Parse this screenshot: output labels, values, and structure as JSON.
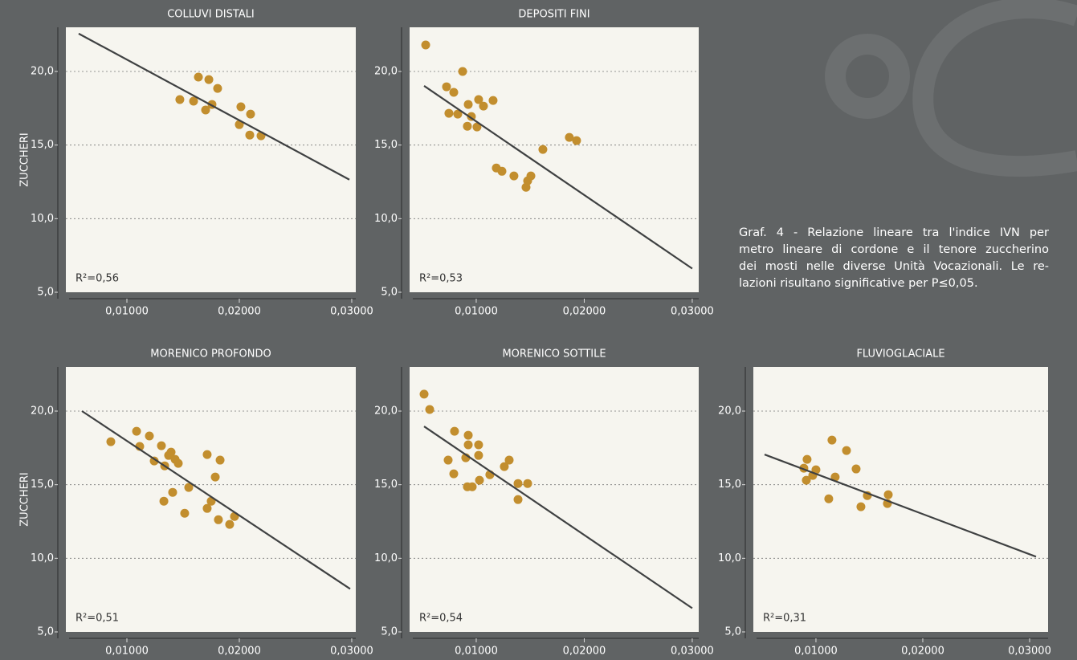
{
  "chart_data": [
    {
      "type": "scatter",
      "title": "COLLUVI DISTALI",
      "y_label": "ZUCCHERI",
      "annotation": "R²=0,56",
      "color": "#c28e2e",
      "x": [
        0.01471,
        0.01636,
        0.01729,
        0.01807,
        0.01757,
        0.01593,
        0.017,
        0.02014,
        0.021,
        0.02,
        0.02093,
        0.02193
      ],
      "values": [
        18.09,
        19.62,
        19.45,
        18.85,
        17.76,
        17.98,
        17.38,
        17.6,
        17.1,
        16.39,
        15.68,
        15.63
      ],
      "trendline": {
        "x": [
          0.00571,
          0.02979
        ],
        "values": [
          22.57,
          12.65
        ]
      },
      "xlim": [
        0.00457,
        0.03036
      ],
      "ylim": [
        5,
        23
      ],
      "xticks": [
        {
          "value": 0.01,
          "label": "0,01000"
        },
        {
          "value": 0.02,
          "label": "0,02000"
        },
        {
          "value": 0.03,
          "label": "0,03000"
        }
      ],
      "yticks": [
        {
          "value": 5,
          "label": "5,0"
        },
        {
          "value": 10,
          "label": "10,0"
        },
        {
          "value": 15,
          "label": "15,0"
        },
        {
          "value": 20,
          "label": "20,0"
        }
      ],
      "grid": true
    },
    {
      "type": "scatter",
      "title": "DEPOSITI FINI",
      "annotation": "R²=0,53",
      "color": "#c28e2e",
      "x": [
        0.00532,
        0.00725,
        0.00874,
        0.00792,
        0.00747,
        0.00829,
        0.00926,
        0.00955,
        0.00918,
        0.01022,
        0.01067,
        0.01156,
        0.01007,
        0.01186,
        0.01238,
        0.01349,
        0.01476,
        0.01506,
        0.01461,
        0.01617,
        0.01862,
        0.01929
      ],
      "values": [
        21.8,
        18.96,
        20.0,
        18.58,
        17.16,
        17.1,
        17.76,
        16.94,
        16.28,
        18.09,
        17.65,
        18.03,
        16.23,
        13.44,
        13.22,
        12.9,
        12.57,
        12.9,
        12.13,
        14.7,
        15.52,
        15.3
      ],
      "trendline": {
        "x": [
          0.00517,
          0.03
        ],
        "values": [
          19.02,
          6.61
        ]
      },
      "xlim": [
        0.00383,
        0.0306
      ],
      "ylim": [
        5,
        23
      ],
      "xticks": [
        {
          "value": 0.01,
          "label": "0,01000"
        },
        {
          "value": 0.02,
          "label": "0,02000"
        },
        {
          "value": 0.03,
          "label": "0,03000"
        }
      ],
      "yticks": [
        {
          "value": 5,
          "label": "5,0"
        },
        {
          "value": 10,
          "label": "10,0"
        },
        {
          "value": 15,
          "label": "15,0"
        },
        {
          "value": 20,
          "label": "20,0"
        }
      ],
      "grid": true
    },
    {
      "type": "scatter",
      "title": "MORENICO PROFONDO",
      "y_label": "ZUCCHERI",
      "annotation": "R²=0,51",
      "color": "#c28e2e",
      "x": [
        0.00857,
        0.01086,
        0.01114,
        0.012,
        0.01243,
        0.01307,
        0.01336,
        0.01371,
        0.01393,
        0.01429,
        0.01457,
        0.01407,
        0.01329,
        0.0155,
        0.01514,
        0.01714,
        0.01829,
        0.01786,
        0.01714,
        0.0175,
        0.01814,
        0.01914,
        0.01957
      ],
      "values": [
        17.92,
        18.63,
        17.6,
        18.31,
        16.61,
        17.65,
        16.28,
        16.99,
        17.21,
        16.72,
        16.45,
        14.48,
        13.88,
        14.81,
        13.06,
        17.05,
        16.67,
        15.52,
        13.39,
        13.88,
        12.62,
        12.3,
        12.84
      ],
      "trendline": {
        "x": [
          0.006,
          0.02986
        ],
        "values": [
          20.0,
          7.92
        ]
      },
      "xlim": [
        0.00457,
        0.03036
      ],
      "ylim": [
        5,
        23
      ],
      "xticks": [
        {
          "value": 0.01,
          "label": "0,01000"
        },
        {
          "value": 0.02,
          "label": "0,02000"
        },
        {
          "value": 0.03,
          "label": "0,03000"
        }
      ],
      "yticks": [
        {
          "value": 5,
          "label": "5,0"
        },
        {
          "value": 10,
          "label": "10,0"
        },
        {
          "value": 15,
          "label": "15,0"
        },
        {
          "value": 20,
          "label": "20,0"
        }
      ],
      "grid": true
    },
    {
      "type": "scatter",
      "title": "MORENICO SOTTILE",
      "annotation": "R²=0,54",
      "color": "#c28e2e",
      "x": [
        0.00517,
        0.00569,
        0.0074,
        0.00799,
        0.00792,
        0.00903,
        0.00926,
        0.00926,
        0.00918,
        0.00963,
        0.01022,
        0.01022,
        0.0103,
        0.01126,
        0.0126,
        0.01305,
        0.01387,
        0.01387,
        0.01476
      ],
      "values": [
        21.15,
        20.11,
        16.67,
        18.63,
        15.74,
        16.83,
        18.36,
        17.71,
        14.86,
        14.86,
        17.71,
        16.99,
        15.3,
        15.68,
        16.23,
        16.67,
        15.08,
        13.99,
        15.08
      ],
      "trendline": {
        "x": [
          0.00517,
          0.03
        ],
        "values": [
          18.96,
          6.61
        ]
      },
      "xlim": [
        0.00383,
        0.0306
      ],
      "ylim": [
        5,
        23
      ],
      "xticks": [
        {
          "value": 0.01,
          "label": "0,01000"
        },
        {
          "value": 0.02,
          "label": "0,02000"
        },
        {
          "value": 0.03,
          "label": "0,03000"
        }
      ],
      "yticks": [
        {
          "value": 5,
          "label": "5,0"
        },
        {
          "value": 10,
          "label": "10,0"
        },
        {
          "value": 15,
          "label": "15,0"
        },
        {
          "value": 20,
          "label": "20,0"
        }
      ],
      "grid": true
    },
    {
      "type": "scatter",
      "title": "FLUVIOGLACIALE",
      "annotation": "R²=0,31",
      "color": "#c28e2e",
      "x": [
        0.00887,
        0.00917,
        0.0091,
        0.0097,
        0.01,
        0.0115,
        0.0118,
        0.0112,
        0.01286,
        0.01376,
        0.01481,
        0.01421,
        0.01677,
        0.01669
      ],
      "values": [
        16.12,
        16.72,
        15.3,
        15.63,
        16.01,
        18.03,
        15.52,
        14.04,
        17.32,
        16.07,
        14.26,
        13.5,
        14.32,
        13.72
      ],
      "trendline": {
        "x": [
          0.00519,
          0.0306
        ],
        "values": [
          17.05,
          10.11
        ]
      },
      "xlim": [
        0.00414,
        0.03173
      ],
      "ylim": [
        5,
        23
      ],
      "xticks": [
        {
          "value": 0.01,
          "label": "0,01000"
        },
        {
          "value": 0.02,
          "label": "0,02000"
        },
        {
          "value": 0.03,
          "label": "0,03000"
        }
      ],
      "yticks": [
        {
          "value": 5,
          "label": "5,0"
        },
        {
          "value": 10,
          "label": "10,0"
        },
        {
          "value": 15,
          "label": "15,0"
        },
        {
          "value": 20,
          "label": "20,0"
        }
      ],
      "grid": true
    }
  ],
  "caption": [
    "Graf. 4 - Relazione lineare tra l'indice IVN per",
    "metro lineare di cordone e il tenore zuccherino",
    "dei mosti nelle diverse Unità Vocazionali. Le re-",
    "lazioni risultano significative per P≤0,05."
  ]
}
